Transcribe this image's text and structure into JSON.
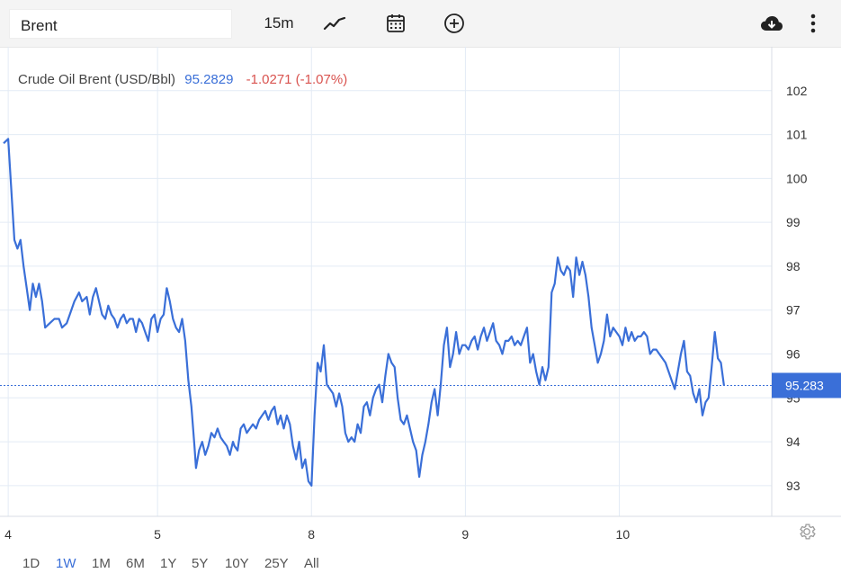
{
  "toolbar": {
    "symbol": "Brent",
    "interval": "15m",
    "icons": [
      "line-chart-icon",
      "calendar-icon",
      "add-circle-icon",
      "cloud-download-icon",
      "more-vertical-icon"
    ]
  },
  "legend": {
    "name": "Crude Oil Brent (USD/Bbl)",
    "last": "95.2829",
    "change": "-1.0271 (-1.07%)"
  },
  "price_tag": "95.283",
  "range_buttons": [
    "1D",
    "1W",
    "1M",
    "6M",
    "1Y",
    "5Y",
    "10Y",
    "25Y",
    "All"
  ],
  "active_range": "1W",
  "colors": {
    "line": "#3a6fd8",
    "negative": "#d9534f",
    "positive_text": "#3a6fd8",
    "grid": "#e3ebf5"
  },
  "chart_data": {
    "type": "line",
    "ylim": [
      92.3,
      103.0
    ],
    "y_ticks": [
      93,
      94,
      95,
      96,
      97,
      98,
      99,
      100,
      101,
      102
    ],
    "x_ticks": [
      {
        "label": "4",
        "t": 0.03
      },
      {
        "label": "5",
        "t": 1.0
      },
      {
        "label": "8",
        "t": 2.0
      },
      {
        "label": "9",
        "t": 3.0
      },
      {
        "label": "10",
        "t": 4.0
      }
    ],
    "xlim": [
      0.0,
      4.92
    ],
    "last_value": 95.283,
    "series": [
      {
        "values": [
          [
            0.0,
            100.8
          ],
          [
            0.03,
            100.9
          ],
          [
            0.07,
            98.6
          ],
          [
            0.09,
            98.4
          ],
          [
            0.11,
            98.6
          ],
          [
            0.13,
            98.0
          ],
          [
            0.15,
            97.5
          ],
          [
            0.17,
            97.0
          ],
          [
            0.19,
            97.6
          ],
          [
            0.21,
            97.3
          ],
          [
            0.23,
            97.6
          ],
          [
            0.25,
            97.2
          ],
          [
            0.27,
            96.6
          ],
          [
            0.3,
            96.7
          ],
          [
            0.33,
            96.8
          ],
          [
            0.36,
            96.8
          ],
          [
            0.38,
            96.6
          ],
          [
            0.41,
            96.7
          ],
          [
            0.43,
            96.9
          ],
          [
            0.46,
            97.2
          ],
          [
            0.49,
            97.4
          ],
          [
            0.51,
            97.2
          ],
          [
            0.54,
            97.3
          ],
          [
            0.56,
            96.9
          ],
          [
            0.58,
            97.3
          ],
          [
            0.6,
            97.5
          ],
          [
            0.62,
            97.2
          ],
          [
            0.64,
            96.9
          ],
          [
            0.66,
            96.8
          ],
          [
            0.68,
            97.1
          ],
          [
            0.7,
            96.9
          ],
          [
            0.72,
            96.8
          ],
          [
            0.74,
            96.6
          ],
          [
            0.76,
            96.8
          ],
          [
            0.78,
            96.9
          ],
          [
            0.8,
            96.7
          ],
          [
            0.82,
            96.8
          ],
          [
            0.84,
            96.8
          ],
          [
            0.86,
            96.5
          ],
          [
            0.88,
            96.8
          ],
          [
            0.9,
            96.7
          ],
          [
            0.92,
            96.5
          ],
          [
            0.94,
            96.3
          ],
          [
            0.96,
            96.8
          ],
          [
            0.98,
            96.9
          ],
          [
            1.0,
            96.5
          ],
          [
            1.02,
            96.8
          ],
          [
            1.04,
            96.9
          ],
          [
            1.06,
            97.5
          ],
          [
            1.08,
            97.2
          ],
          [
            1.1,
            96.8
          ],
          [
            1.12,
            96.6
          ],
          [
            1.14,
            96.5
          ],
          [
            1.16,
            96.8
          ],
          [
            1.18,
            96.3
          ],
          [
            1.2,
            95.4
          ],
          [
            1.22,
            94.8
          ],
          [
            1.24,
            93.9
          ],
          [
            1.25,
            93.4
          ],
          [
            1.27,
            93.8
          ],
          [
            1.29,
            94.0
          ],
          [
            1.31,
            93.7
          ],
          [
            1.33,
            93.9
          ],
          [
            1.35,
            94.2
          ],
          [
            1.37,
            94.1
          ],
          [
            1.39,
            94.3
          ],
          [
            1.41,
            94.1
          ],
          [
            1.43,
            94.0
          ],
          [
            1.45,
            93.9
          ],
          [
            1.47,
            93.7
          ],
          [
            1.49,
            94.0
          ],
          [
            1.5,
            93.9
          ],
          [
            1.52,
            93.8
          ],
          [
            1.54,
            94.3
          ],
          [
            1.56,
            94.4
          ],
          [
            1.58,
            94.2
          ],
          [
            1.6,
            94.3
          ],
          [
            1.62,
            94.4
          ],
          [
            1.64,
            94.3
          ],
          [
            1.66,
            94.5
          ],
          [
            1.68,
            94.6
          ],
          [
            1.7,
            94.7
          ],
          [
            1.72,
            94.5
          ],
          [
            1.74,
            94.7
          ],
          [
            1.76,
            94.8
          ],
          [
            1.78,
            94.4
          ],
          [
            1.8,
            94.6
          ],
          [
            1.82,
            94.3
          ],
          [
            1.84,
            94.6
          ],
          [
            1.86,
            94.4
          ],
          [
            1.88,
            93.9
          ],
          [
            1.9,
            93.6
          ],
          [
            1.92,
            94.0
          ],
          [
            1.94,
            93.4
          ],
          [
            1.96,
            93.6
          ],
          [
            1.98,
            93.1
          ],
          [
            2.0,
            93.0
          ],
          [
            2.02,
            94.6
          ],
          [
            2.04,
            95.8
          ],
          [
            2.06,
            95.6
          ],
          [
            2.08,
            96.2
          ],
          [
            2.1,
            95.3
          ],
          [
            2.12,
            95.2
          ],
          [
            2.14,
            95.1
          ],
          [
            2.16,
            94.8
          ],
          [
            2.18,
            95.1
          ],
          [
            2.2,
            94.8
          ],
          [
            2.22,
            94.2
          ],
          [
            2.24,
            94.0
          ],
          [
            2.26,
            94.1
          ],
          [
            2.28,
            94.0
          ],
          [
            2.3,
            94.4
          ],
          [
            2.32,
            94.2
          ],
          [
            2.34,
            94.8
          ],
          [
            2.36,
            94.9
          ],
          [
            2.38,
            94.6
          ],
          [
            2.4,
            95.0
          ],
          [
            2.42,
            95.2
          ],
          [
            2.44,
            95.3
          ],
          [
            2.46,
            94.9
          ],
          [
            2.48,
            95.5
          ],
          [
            2.5,
            96.0
          ],
          [
            2.52,
            95.8
          ],
          [
            2.54,
            95.7
          ],
          [
            2.56,
            95.0
          ],
          [
            2.58,
            94.5
          ],
          [
            2.6,
            94.4
          ],
          [
            2.62,
            94.6
          ],
          [
            2.64,
            94.3
          ],
          [
            2.66,
            94.0
          ],
          [
            2.68,
            93.8
          ],
          [
            2.7,
            93.2
          ],
          [
            2.72,
            93.7
          ],
          [
            2.74,
            94.0
          ],
          [
            2.76,
            94.4
          ],
          [
            2.78,
            94.9
          ],
          [
            2.8,
            95.2
          ],
          [
            2.82,
            94.6
          ],
          [
            2.84,
            95.3
          ],
          [
            2.86,
            96.2
          ],
          [
            2.88,
            96.6
          ],
          [
            2.9,
            95.7
          ],
          [
            2.92,
            96.0
          ],
          [
            2.94,
            96.5
          ],
          [
            2.96,
            96.0
          ],
          [
            2.98,
            96.2
          ],
          [
            3.0,
            96.2
          ],
          [
            3.02,
            96.1
          ],
          [
            3.04,
            96.3
          ],
          [
            3.06,
            96.4
          ],
          [
            3.08,
            96.1
          ],
          [
            3.1,
            96.4
          ],
          [
            3.12,
            96.6
          ],
          [
            3.14,
            96.3
          ],
          [
            3.16,
            96.5
          ],
          [
            3.18,
            96.7
          ],
          [
            3.2,
            96.3
          ],
          [
            3.22,
            96.2
          ],
          [
            3.24,
            96.0
          ],
          [
            3.26,
            96.3
          ],
          [
            3.28,
            96.3
          ],
          [
            3.3,
            96.4
          ],
          [
            3.32,
            96.2
          ],
          [
            3.34,
            96.3
          ],
          [
            3.36,
            96.2
          ],
          [
            3.38,
            96.4
          ],
          [
            3.4,
            96.6
          ],
          [
            3.42,
            95.8
          ],
          [
            3.44,
            96.0
          ],
          [
            3.46,
            95.6
          ],
          [
            3.48,
            95.3
          ],
          [
            3.5,
            95.7
          ],
          [
            3.52,
            95.4
          ],
          [
            3.54,
            95.7
          ],
          [
            3.56,
            97.4
          ],
          [
            3.58,
            97.6
          ],
          [
            3.6,
            98.2
          ],
          [
            3.62,
            97.9
          ],
          [
            3.64,
            97.8
          ],
          [
            3.66,
            98.0
          ],
          [
            3.68,
            97.9
          ],
          [
            3.7,
            97.3
          ],
          [
            3.72,
            98.2
          ],
          [
            3.74,
            97.8
          ],
          [
            3.76,
            98.1
          ],
          [
            3.78,
            97.8
          ],
          [
            3.8,
            97.3
          ],
          [
            3.82,
            96.6
          ],
          [
            3.84,
            96.2
          ],
          [
            3.86,
            95.8
          ],
          [
            3.88,
            96.0
          ],
          [
            3.9,
            96.3
          ],
          [
            3.92,
            96.9
          ],
          [
            3.94,
            96.4
          ],
          [
            3.96,
            96.6
          ],
          [
            3.98,
            96.5
          ],
          [
            4.0,
            96.4
          ],
          [
            4.02,
            96.2
          ],
          [
            4.04,
            96.6
          ],
          [
            4.06,
            96.3
          ],
          [
            4.08,
            96.5
          ],
          [
            4.1,
            96.3
          ],
          [
            4.12,
            96.4
          ],
          [
            4.14,
            96.4
          ],
          [
            4.16,
            96.5
          ],
          [
            4.18,
            96.4
          ],
          [
            4.2,
            96.0
          ],
          [
            4.22,
            96.1
          ],
          [
            4.24,
            96.1
          ],
          [
            4.26,
            96.0
          ],
          [
            4.28,
            95.9
          ],
          [
            4.3,
            95.8
          ],
          [
            4.32,
            95.6
          ],
          [
            4.34,
            95.4
          ],
          [
            4.36,
            95.2
          ],
          [
            4.38,
            95.6
          ],
          [
            4.4,
            96.0
          ],
          [
            4.42,
            96.3
          ],
          [
            4.44,
            95.6
          ],
          [
            4.46,
            95.5
          ],
          [
            4.48,
            95.1
          ],
          [
            4.5,
            94.9
          ],
          [
            4.52,
            95.2
          ],
          [
            4.54,
            94.6
          ],
          [
            4.56,
            94.9
          ],
          [
            4.58,
            95.0
          ],
          [
            4.6,
            95.7
          ],
          [
            4.62,
            96.5
          ],
          [
            4.64,
            95.9
          ],
          [
            4.66,
            95.8
          ],
          [
            4.68,
            95.28
          ]
        ]
      }
    ]
  }
}
